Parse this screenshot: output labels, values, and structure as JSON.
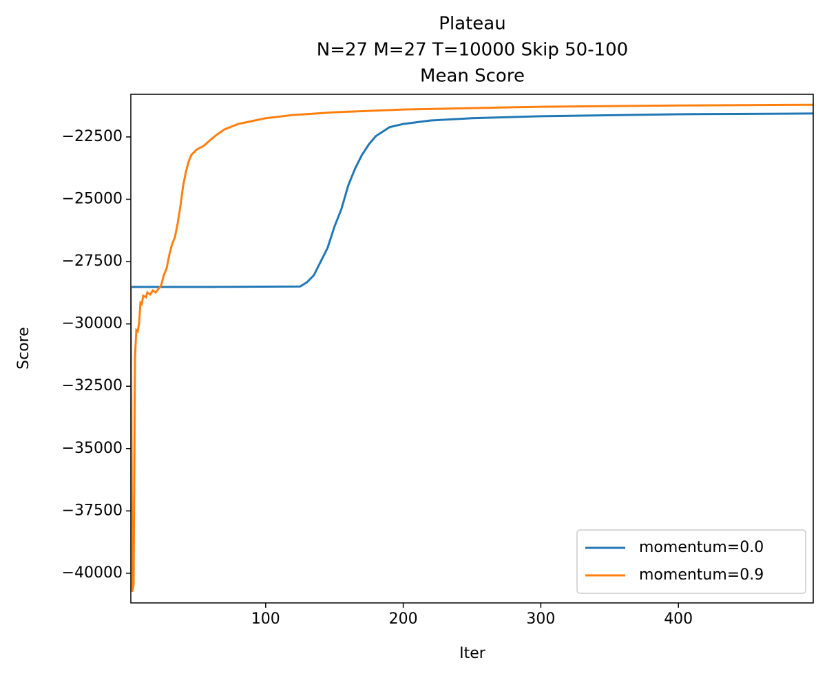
{
  "chart_data": {
    "type": "line",
    "title": [
      "Plateau",
      "N=27 M=27 T=10000 Skip 50-100",
      "Mean Score"
    ],
    "x_label": "Iter",
    "y_label": "Score",
    "xlim": [
      2,
      498
    ],
    "ylim": [
      -41190,
      -20790
    ],
    "xticks": [
      100,
      200,
      300,
      400
    ],
    "yticks": [
      {
        "value": -22500,
        "label": "−22500"
      },
      {
        "value": -25000,
        "label": "−25000"
      },
      {
        "value": -27500,
        "label": "−27500"
      },
      {
        "value": -30000,
        "label": "−30000"
      },
      {
        "value": -32500,
        "label": "−32500"
      },
      {
        "value": -35000,
        "label": "−35000"
      },
      {
        "value": -37500,
        "label": "−37500"
      },
      {
        "value": -40000,
        "label": "−40000"
      }
    ],
    "legend": "lower right",
    "series": [
      {
        "name": "momentum=0.0",
        "color": "#1f77b4",
        "x": [
          2,
          60,
          125,
          130,
          135,
          140,
          145,
          150,
          155,
          160,
          165,
          170,
          175,
          180,
          190,
          200,
          220,
          250,
          300,
          400,
          498
        ],
        "values": [
          -28515,
          -28515,
          -28500,
          -28330,
          -28050,
          -27500,
          -26950,
          -26100,
          -25400,
          -24450,
          -23770,
          -23220,
          -22800,
          -22470,
          -22110,
          -21980,
          -21840,
          -21750,
          -21670,
          -21590,
          -21560
        ]
      },
      {
        "name": "momentum=0.9",
        "color": "#ff7f0e",
        "x": [
          2,
          3,
          4,
          5,
          6,
          7,
          8,
          9,
          10,
          11,
          13,
          14,
          16,
          18,
          20,
          22,
          24,
          26,
          28,
          30,
          32,
          34,
          36,
          38,
          40,
          42,
          44,
          46,
          50,
          55,
          60,
          65,
          70,
          80,
          100,
          120,
          150,
          200,
          300,
          400,
          498
        ],
        "values": [
          -28500,
          -40740,
          -40460,
          -31360,
          -30250,
          -30300,
          -29980,
          -29150,
          -29200,
          -28870,
          -28930,
          -28740,
          -28820,
          -28660,
          -28740,
          -28600,
          -28460,
          -28050,
          -27770,
          -27220,
          -26800,
          -26530,
          -25980,
          -25290,
          -24460,
          -23910,
          -23490,
          -23220,
          -23000,
          -22860,
          -22610,
          -22390,
          -22200,
          -21980,
          -21750,
          -21620,
          -21510,
          -21400,
          -21290,
          -21240,
          -21210
        ]
      }
    ]
  }
}
